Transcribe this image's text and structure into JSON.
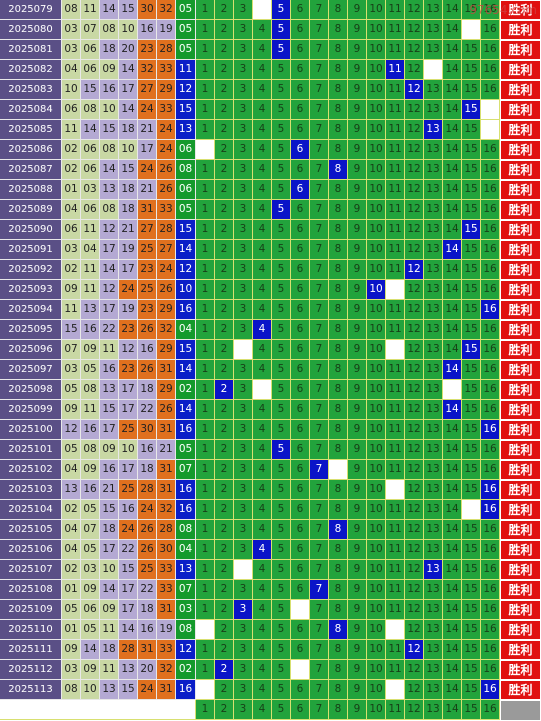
{
  "watermark": "97654.com",
  "action_label": "胜利",
  "columns": [
    "1",
    "2",
    "3",
    "4",
    "5",
    "6",
    "7",
    "8",
    "9",
    "10",
    "11",
    "12",
    "13",
    "14",
    "15",
    "16"
  ],
  "rows": [
    {
      "issue": "2025079",
      "reds": [
        "08",
        "11",
        "14",
        "15",
        "30",
        "32"
      ],
      "blue": "05",
      "hit": 5,
      "blanks": [
        4
      ]
    },
    {
      "issue": "2025080",
      "reds": [
        "03",
        "07",
        "08",
        "10",
        "16",
        "19"
      ],
      "blue": "05",
      "hit": 5,
      "blanks": [
        15
      ]
    },
    {
      "issue": "2025081",
      "reds": [
        "03",
        "06",
        "18",
        "20",
        "23",
        "28"
      ],
      "blue": "05",
      "hit": 5,
      "blanks": []
    },
    {
      "issue": "2025082",
      "reds": [
        "04",
        "06",
        "09",
        "14",
        "32",
        "33"
      ],
      "blue": "11",
      "hit": 11,
      "blanks": [
        13
      ]
    },
    {
      "issue": "2025083",
      "reds": [
        "10",
        "15",
        "16",
        "17",
        "27",
        "29"
      ],
      "blue": "12",
      "hit": 12,
      "blanks": []
    },
    {
      "issue": "2025084",
      "reds": [
        "06",
        "08",
        "10",
        "14",
        "24",
        "33"
      ],
      "blue": "15",
      "hit": 15,
      "blanks": [
        16
      ]
    },
    {
      "issue": "2025085",
      "reds": [
        "11",
        "14",
        "15",
        "18",
        "21",
        "24"
      ],
      "blue": "13",
      "hit": 13,
      "blanks": [
        16
      ]
    },
    {
      "issue": "2025086",
      "reds": [
        "02",
        "06",
        "08",
        "10",
        "17",
        "24"
      ],
      "blue": "06",
      "hit": 6,
      "blanks": [
        1
      ]
    },
    {
      "issue": "2025087",
      "reds": [
        "02",
        "06",
        "14",
        "15",
        "24",
        "26"
      ],
      "blue": "08",
      "hit": 8,
      "blanks": []
    },
    {
      "issue": "2025088",
      "reds": [
        "01",
        "03",
        "13",
        "18",
        "21",
        "26"
      ],
      "blue": "06",
      "hit": 6,
      "blanks": []
    },
    {
      "issue": "2025089",
      "reds": [
        "04",
        "06",
        "08",
        "18",
        "31",
        "33"
      ],
      "blue": "05",
      "hit": 5,
      "blanks": []
    },
    {
      "issue": "2025090",
      "reds": [
        "06",
        "11",
        "12",
        "21",
        "27",
        "28"
      ],
      "blue": "15",
      "hit": 15,
      "blanks": []
    },
    {
      "issue": "2025091",
      "reds": [
        "03",
        "04",
        "17",
        "19",
        "25",
        "27"
      ],
      "blue": "14",
      "hit": 14,
      "blanks": []
    },
    {
      "issue": "2025092",
      "reds": [
        "02",
        "11",
        "14",
        "17",
        "23",
        "24"
      ],
      "blue": "12",
      "hit": 12,
      "blanks": []
    },
    {
      "issue": "2025093",
      "reds": [
        "09",
        "11",
        "12",
        "24",
        "25",
        "26"
      ],
      "blue": "10",
      "hit": 10,
      "blanks": [
        11
      ]
    },
    {
      "issue": "2025094",
      "reds": [
        "11",
        "13",
        "17",
        "19",
        "23",
        "29"
      ],
      "blue": "16",
      "hit": 16,
      "blanks": []
    },
    {
      "issue": "2025095",
      "reds": [
        "15",
        "16",
        "22",
        "23",
        "26",
        "32"
      ],
      "blue": "04",
      "hit": 4,
      "blanks": []
    },
    {
      "issue": "2025096",
      "reds": [
        "07",
        "09",
        "11",
        "12",
        "16",
        "29"
      ],
      "blue": "15",
      "hit": 15,
      "blanks": [
        3,
        11
      ]
    },
    {
      "issue": "2025097",
      "reds": [
        "03",
        "05",
        "16",
        "23",
        "26",
        "31"
      ],
      "blue": "14",
      "hit": 14,
      "blanks": []
    },
    {
      "issue": "2025098",
      "reds": [
        "05",
        "08",
        "13",
        "17",
        "18",
        "29"
      ],
      "blue": "02",
      "hit": 2,
      "blanks": [
        4,
        14
      ]
    },
    {
      "issue": "2025099",
      "reds": [
        "09",
        "11",
        "15",
        "17",
        "22",
        "26"
      ],
      "blue": "14",
      "hit": 14,
      "blanks": []
    },
    {
      "issue": "2025100",
      "reds": [
        "12",
        "16",
        "17",
        "25",
        "30",
        "31"
      ],
      "blue": "16",
      "hit": 16,
      "blanks": []
    },
    {
      "issue": "2025101",
      "reds": [
        "05",
        "08",
        "09",
        "10",
        "16",
        "21"
      ],
      "blue": "05",
      "hit": 5,
      "blanks": []
    },
    {
      "issue": "2025102",
      "reds": [
        "04",
        "09",
        "16",
        "17",
        "18",
        "31"
      ],
      "blue": "07",
      "hit": 7,
      "blanks": [
        8
      ]
    },
    {
      "issue": "2025103",
      "reds": [
        "13",
        "16",
        "21",
        "25",
        "28",
        "31"
      ],
      "blue": "16",
      "hit": 16,
      "blanks": [
        11
      ]
    },
    {
      "issue": "2025104",
      "reds": [
        "02",
        "05",
        "15",
        "16",
        "24",
        "32"
      ],
      "blue": "16",
      "hit": 16,
      "blanks": [
        15
      ]
    },
    {
      "issue": "2025105",
      "reds": [
        "04",
        "07",
        "18",
        "24",
        "26",
        "28"
      ],
      "blue": "08",
      "hit": 8,
      "blanks": []
    },
    {
      "issue": "2025106",
      "reds": [
        "04",
        "05",
        "17",
        "22",
        "26",
        "30"
      ],
      "blue": "04",
      "hit": 4,
      "blanks": []
    },
    {
      "issue": "2025107",
      "reds": [
        "02",
        "03",
        "10",
        "15",
        "25",
        "33"
      ],
      "blue": "13",
      "hit": 13,
      "blanks": [
        3
      ]
    },
    {
      "issue": "2025108",
      "reds": [
        "01",
        "09",
        "14",
        "17",
        "22",
        "33"
      ],
      "blue": "07",
      "hit": 7,
      "blanks": []
    },
    {
      "issue": "2025109",
      "reds": [
        "05",
        "06",
        "09",
        "17",
        "18",
        "31"
      ],
      "blue": "03",
      "hit": 3,
      "blanks": [
        6
      ]
    },
    {
      "issue": "2025110",
      "reds": [
        "01",
        "05",
        "11",
        "14",
        "16",
        "19"
      ],
      "blue": "08",
      "hit": 8,
      "blanks": [
        1,
        11
      ]
    },
    {
      "issue": "2025111",
      "reds": [
        "09",
        "14",
        "18",
        "28",
        "31",
        "33"
      ],
      "blue": "12",
      "hit": 12,
      "blanks": []
    },
    {
      "issue": "2025112",
      "reds": [
        "03",
        "09",
        "11",
        "13",
        "20",
        "32"
      ],
      "blue": "02",
      "hit": 2,
      "blanks": [
        6
      ]
    },
    {
      "issue": "2025113",
      "reds": [
        "08",
        "10",
        "13",
        "15",
        "24",
        "31"
      ],
      "blue": "16",
      "hit": 16,
      "blanks": [
        1,
        11
      ]
    }
  ]
}
